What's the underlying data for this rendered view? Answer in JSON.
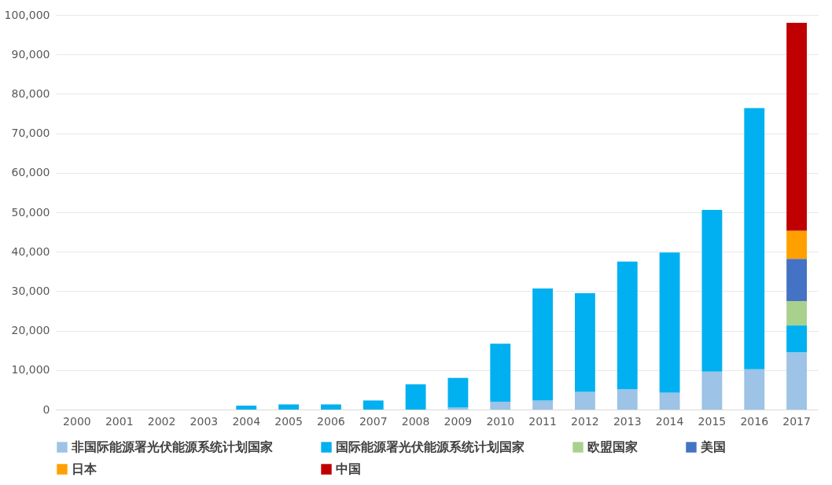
{
  "chart_data": {
    "type": "bar",
    "stacked": true,
    "categories": [
      "2000",
      "2001",
      "2002",
      "2003",
      "2004",
      "2005",
      "2006",
      "2007",
      "2008",
      "2009",
      "2010",
      "2011",
      "2012",
      "2013",
      "2014",
      "2015",
      "2016",
      "2017"
    ],
    "series": [
      {
        "name": "非国际能源署光伏能源系统计划国家",
        "color": "#9dc3e6",
        "values": [
          0,
          0,
          0,
          0,
          0,
          0,
          0,
          0,
          0,
          500,
          2000,
          2300,
          4500,
          5200,
          4300,
          9600,
          10200,
          14500
        ]
      },
      {
        "name": "国际能源署光伏能源系统计划国家",
        "color": "#00b0f0",
        "values": [
          0,
          0,
          0,
          0,
          1000,
          1300,
          1300,
          2300,
          6400,
          7500,
          14700,
          28400,
          25000,
          32300,
          35500,
          41000,
          66200,
          6800
        ]
      },
      {
        "name": "欧盟国家",
        "color": "#a9d18e",
        "values": [
          null,
          null,
          null,
          null,
          null,
          null,
          null,
          null,
          null,
          null,
          null,
          null,
          null,
          null,
          null,
          null,
          null,
          6200
        ]
      },
      {
        "name": "美国",
        "color": "#4472c4",
        "values": [
          null,
          null,
          null,
          null,
          null,
          null,
          null,
          null,
          null,
          null,
          null,
          null,
          null,
          null,
          null,
          null,
          null,
          10700
        ]
      },
      {
        "name": "日本",
        "color": "#ffa000",
        "values": [
          null,
          null,
          null,
          null,
          null,
          null,
          null,
          null,
          null,
          null,
          null,
          null,
          null,
          null,
          null,
          null,
          null,
          7100
        ]
      },
      {
        "name": "中国",
        "color": "#c00000",
        "values": [
          null,
          null,
          null,
          null,
          null,
          null,
          null,
          null,
          null,
          null,
          null,
          null,
          null,
          null,
          null,
          null,
          null,
          52700
        ]
      }
    ],
    "ylim": [
      0,
      100000
    ],
    "yticks": [
      {
        "value": 0,
        "label": "0"
      },
      {
        "value": 10000,
        "label": "10,000"
      },
      {
        "value": 20000,
        "label": "20,000"
      },
      {
        "value": 30000,
        "label": "30,000"
      },
      {
        "value": 40000,
        "label": "40,000"
      },
      {
        "value": 50000,
        "label": "50,000"
      },
      {
        "value": 60000,
        "label": "60,000"
      },
      {
        "value": 70000,
        "label": "70,000"
      },
      {
        "value": 80000,
        "label": "80,000"
      },
      {
        "value": 90000,
        "label": "90,000"
      },
      {
        "value": 100000,
        "label": "100,000"
      }
    ],
    "grid": "y",
    "legend": "bottom"
  }
}
